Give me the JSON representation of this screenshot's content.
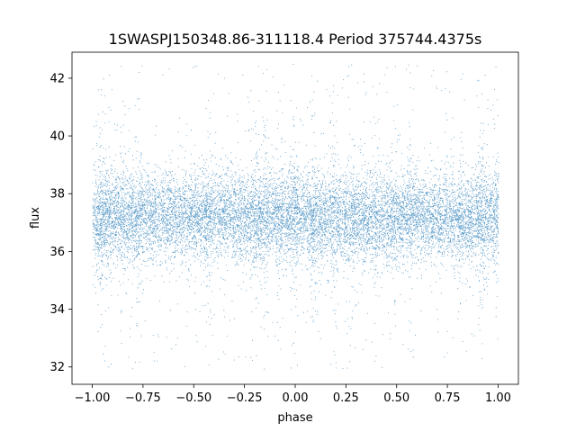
{
  "chart_data": {
    "type": "scatter",
    "title": "1SWASPJ150348.86-311118.4 Period 375744.4375s",
    "xlabel": "phase",
    "ylabel": "flux",
    "xlim": [
      -1.1,
      1.1
    ],
    "ylim": [
      31.4,
      42.9
    ],
    "x_ticks": [
      -1.0,
      -0.75,
      -0.5,
      -0.25,
      0.0,
      0.25,
      0.5,
      0.75,
      1.0
    ],
    "x_tick_labels": [
      "−1.00",
      "−0.75",
      "−0.50",
      "−0.25",
      "0.00",
      "0.25",
      "0.50",
      "0.75",
      "1.00"
    ],
    "y_ticks": [
      32,
      34,
      36,
      38,
      40,
      42
    ],
    "y_tick_labels": [
      "32",
      "34",
      "36",
      "38",
      "40",
      "42"
    ],
    "grid": false,
    "marker_color": "#1f77b4",
    "point_summary": {
      "x_range": [
        -1.0,
        1.0
      ],
      "y_range": [
        31.9,
        42.5
      ],
      "median_flux": 37.2,
      "core_band": [
        36.2,
        38.2
      ]
    }
  }
}
